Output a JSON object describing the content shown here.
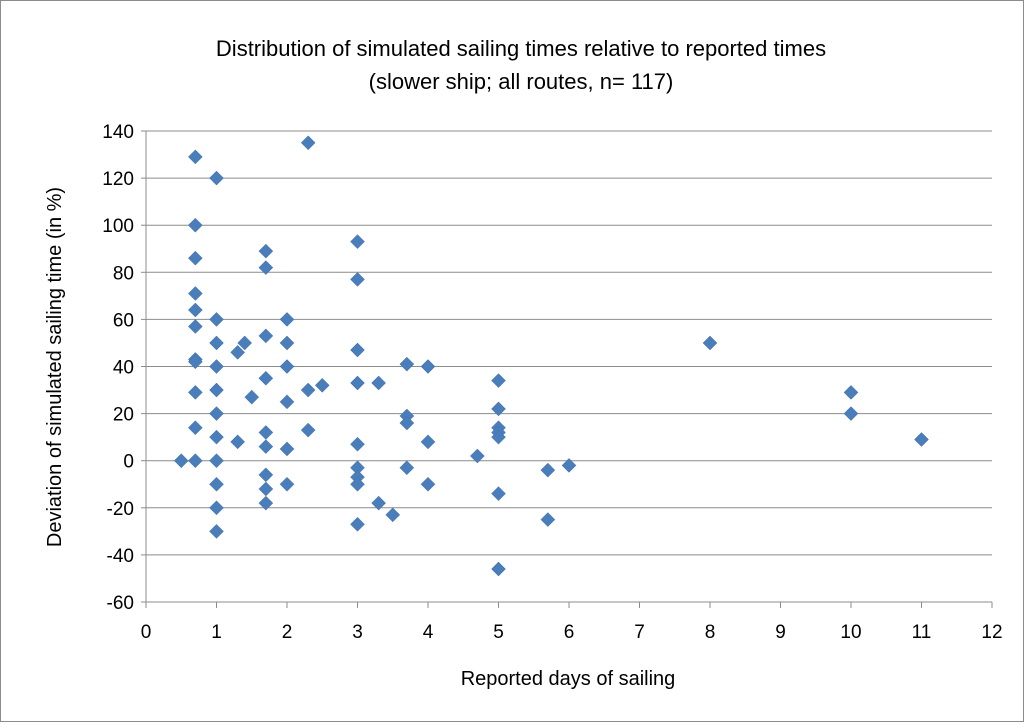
{
  "chart_data": {
    "type": "scatter",
    "title": "Distribution of simulated sailing times relative to reported times",
    "subtitle": "(slower ship; all routes, n= 117)",
    "xlabel": "Reported days of sailing",
    "ylabel": "Deviation of simulated sailing time (in %)",
    "xlim": [
      0,
      12
    ],
    "ylim": [
      -60,
      140
    ],
    "xticks": [
      0,
      1,
      2,
      3,
      4,
      5,
      6,
      7,
      8,
      9,
      10,
      11,
      12
    ],
    "yticks": [
      -60,
      -40,
      -20,
      0,
      20,
      40,
      60,
      80,
      100,
      120,
      140
    ],
    "grid": "horizontal",
    "legend": "none",
    "marker_color": "#4a7ebb",
    "marker": "diamond",
    "points": [
      {
        "x": 0.5,
        "y": 0
      },
      {
        "x": 0.7,
        "y": 129
      },
      {
        "x": 0.7,
        "y": 100
      },
      {
        "x": 0.7,
        "y": 86
      },
      {
        "x": 0.7,
        "y": 71
      },
      {
        "x": 0.7,
        "y": 64
      },
      {
        "x": 0.7,
        "y": 57
      },
      {
        "x": 0.7,
        "y": 43
      },
      {
        "x": 0.7,
        "y": 42
      },
      {
        "x": 0.7,
        "y": 29
      },
      {
        "x": 0.7,
        "y": 14
      },
      {
        "x": 0.7,
        "y": 0
      },
      {
        "x": 1,
        "y": 120
      },
      {
        "x": 1,
        "y": 60
      },
      {
        "x": 1,
        "y": 50
      },
      {
        "x": 1,
        "y": 40
      },
      {
        "x": 1,
        "y": 30
      },
      {
        "x": 1,
        "y": 20
      },
      {
        "x": 1,
        "y": 10
      },
      {
        "x": 1,
        "y": 0
      },
      {
        "x": 1,
        "y": -10
      },
      {
        "x": 1,
        "y": -20
      },
      {
        "x": 1,
        "y": -30
      },
      {
        "x": 1.3,
        "y": 46
      },
      {
        "x": 1.3,
        "y": 8
      },
      {
        "x": 1.4,
        "y": 50
      },
      {
        "x": 1.5,
        "y": 27
      },
      {
        "x": 1.7,
        "y": 89
      },
      {
        "x": 1.7,
        "y": 82
      },
      {
        "x": 1.7,
        "y": 53
      },
      {
        "x": 1.7,
        "y": 35
      },
      {
        "x": 1.7,
        "y": 12
      },
      {
        "x": 1.7,
        "y": 6
      },
      {
        "x": 1.7,
        "y": -6
      },
      {
        "x": 1.7,
        "y": -12
      },
      {
        "x": 1.7,
        "y": -18
      },
      {
        "x": 2,
        "y": 60
      },
      {
        "x": 2,
        "y": 50
      },
      {
        "x": 2,
        "y": 40
      },
      {
        "x": 2,
        "y": 25
      },
      {
        "x": 2,
        "y": 5
      },
      {
        "x": 2,
        "y": -10
      },
      {
        "x": 2.3,
        "y": 135
      },
      {
        "x": 2.3,
        "y": 30
      },
      {
        "x": 2.3,
        "y": 13
      },
      {
        "x": 2.5,
        "y": 32
      },
      {
        "x": 3,
        "y": 93
      },
      {
        "x": 3,
        "y": 77
      },
      {
        "x": 3,
        "y": 47
      },
      {
        "x": 3,
        "y": 33
      },
      {
        "x": 3,
        "y": 7
      },
      {
        "x": 3,
        "y": -3
      },
      {
        "x": 3,
        "y": -7
      },
      {
        "x": 3,
        "y": -10
      },
      {
        "x": 3,
        "y": -27
      },
      {
        "x": 3.3,
        "y": 33
      },
      {
        "x": 3.3,
        "y": -18
      },
      {
        "x": 3.5,
        "y": -23
      },
      {
        "x": 3.7,
        "y": 41
      },
      {
        "x": 3.7,
        "y": 19
      },
      {
        "x": 3.7,
        "y": 16
      },
      {
        "x": 3.7,
        "y": -3
      },
      {
        "x": 4,
        "y": 40
      },
      {
        "x": 4,
        "y": 8
      },
      {
        "x": 4,
        "y": -10
      },
      {
        "x": 4.7,
        "y": 2
      },
      {
        "x": 5,
        "y": 34
      },
      {
        "x": 5,
        "y": 22
      },
      {
        "x": 5,
        "y": 14
      },
      {
        "x": 5,
        "y": 12
      },
      {
        "x": 5,
        "y": 10
      },
      {
        "x": 5,
        "y": -14
      },
      {
        "x": 5,
        "y": -46
      },
      {
        "x": 5.7,
        "y": -4
      },
      {
        "x": 5.7,
        "y": -25
      },
      {
        "x": 6,
        "y": -2
      },
      {
        "x": 8,
        "y": 50
      },
      {
        "x": 10,
        "y": 29
      },
      {
        "x": 10,
        "y": 20
      },
      {
        "x": 11,
        "y": 9
      }
    ]
  }
}
